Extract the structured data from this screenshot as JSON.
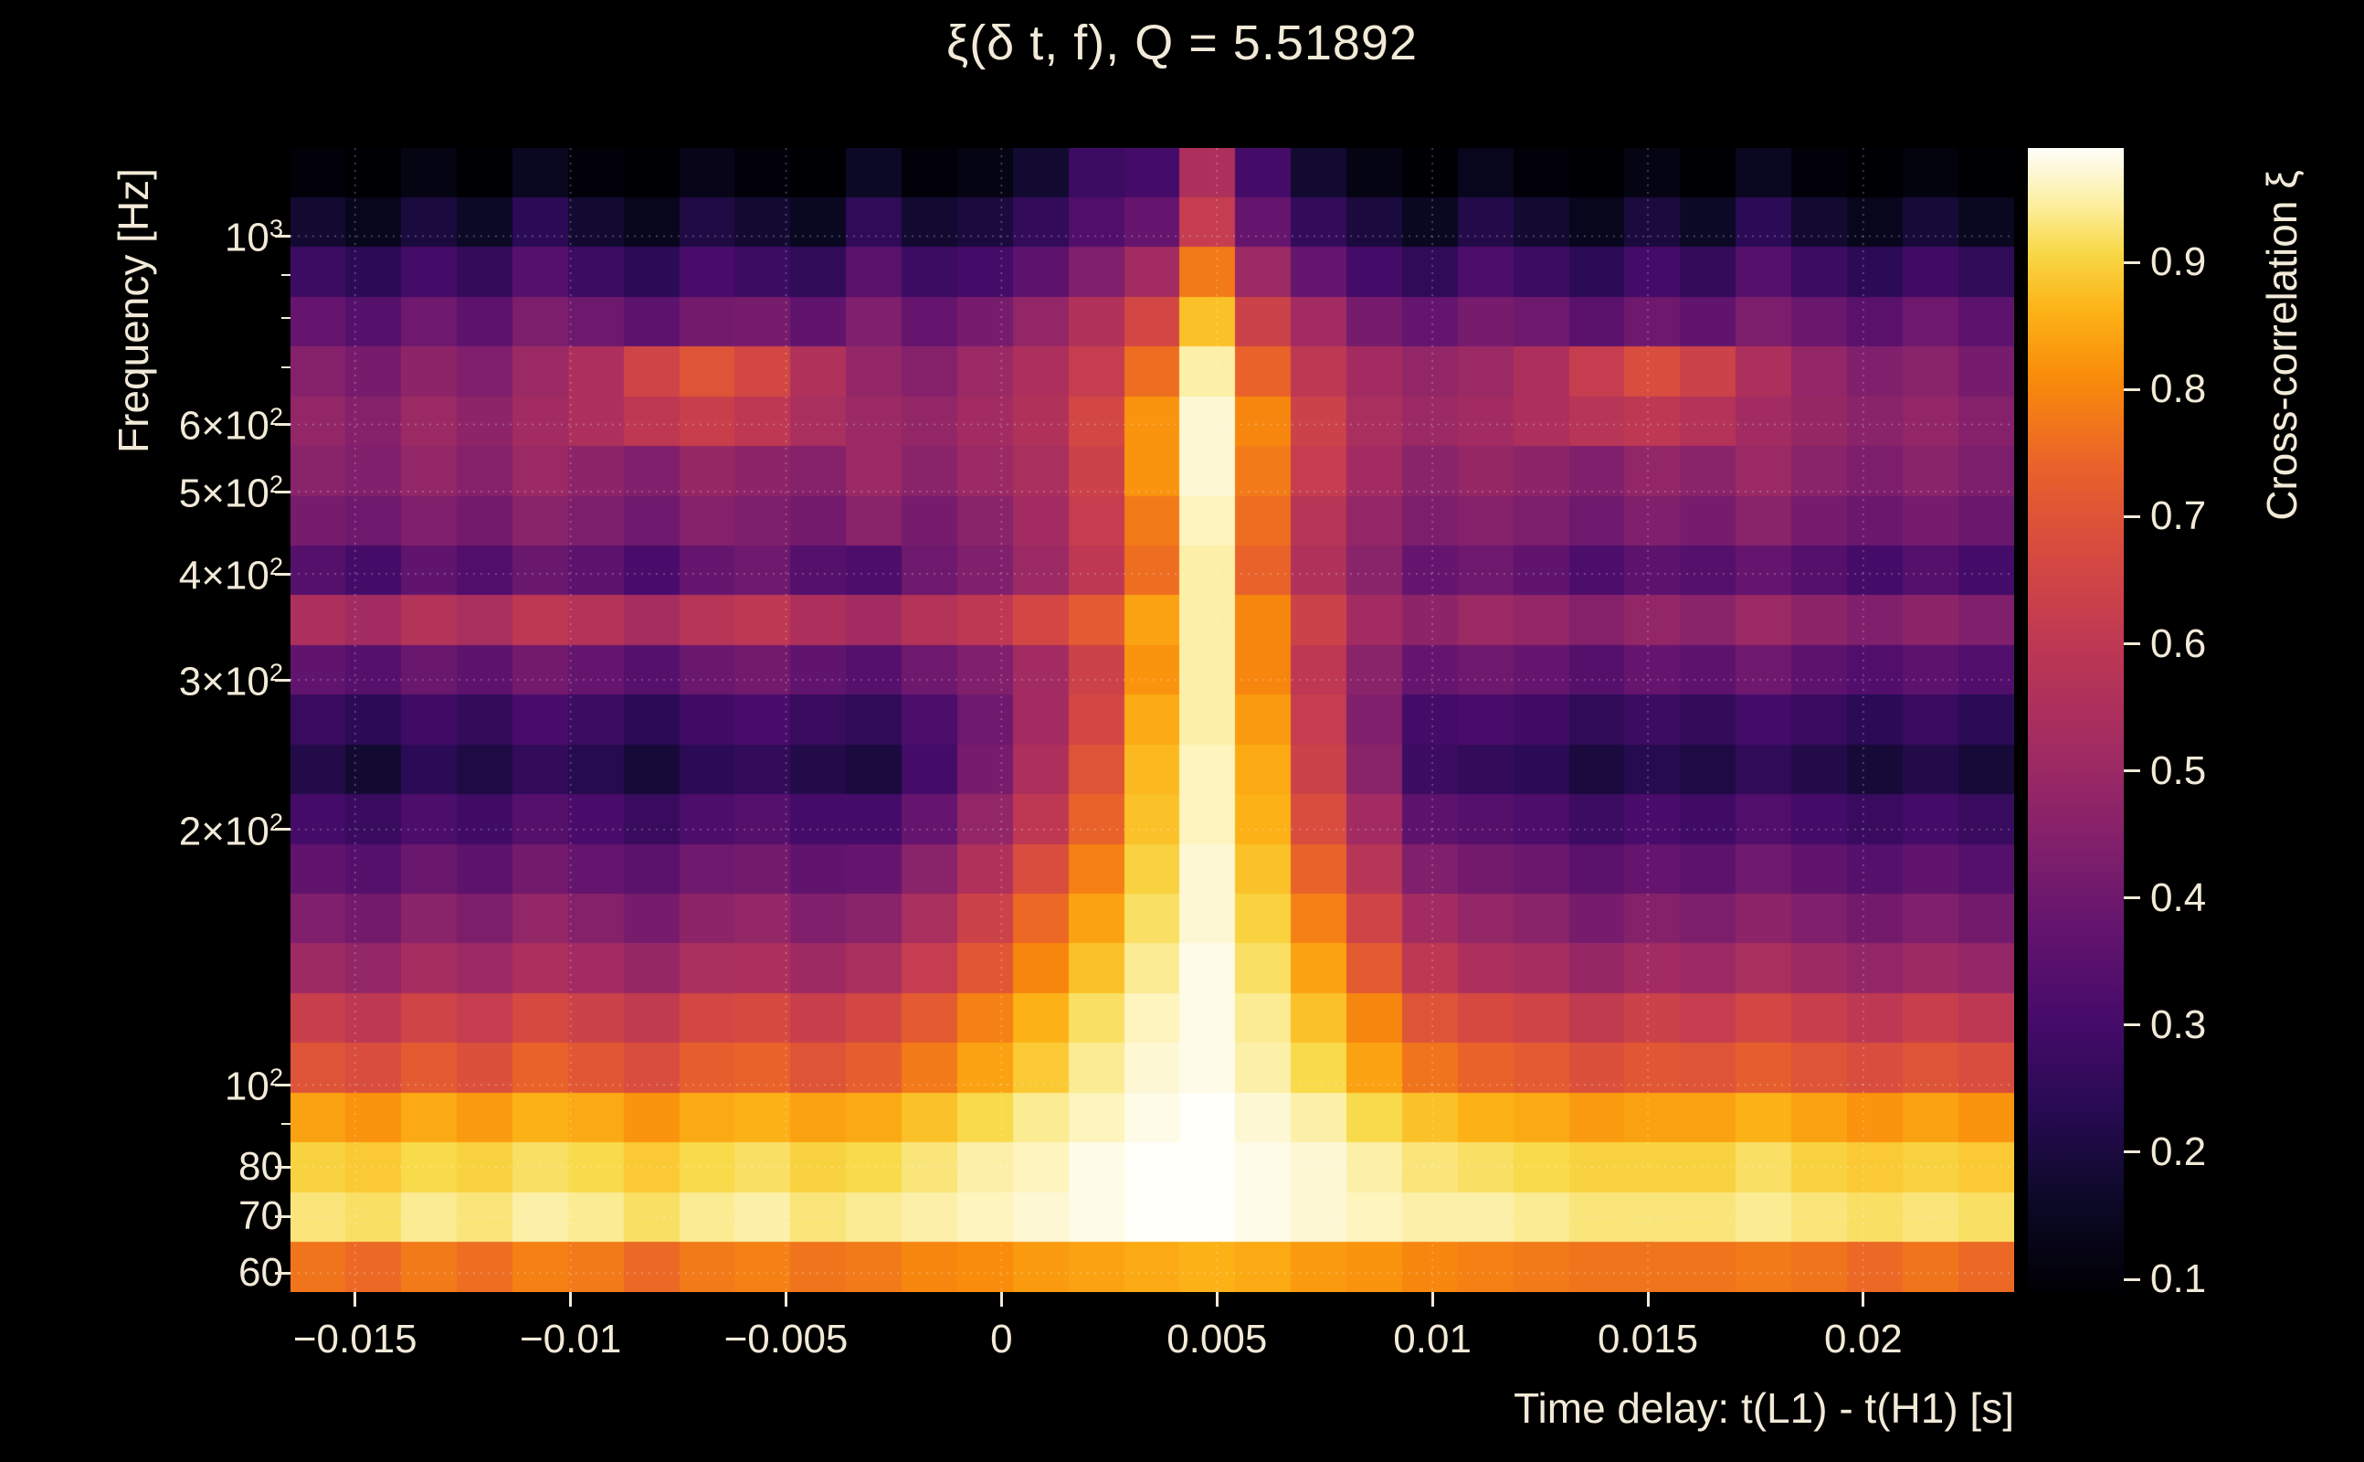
{
  "theme": {
    "background": "#000000",
    "text_color": "#f2ead8",
    "grid_color": "rgba(255,255,255,0.32)"
  },
  "chart_data": {
    "type": "heatmap",
    "title": "ξ(δ t, f), Q = 5.51892",
    "xlabel": "Time delay: t(L1) - t(H1) [s]",
    "ylabel": "Frequency [Hz]",
    "colorbar_label": "Cross-correlation ξ",
    "x_range": [
      -0.0165,
      0.0235
    ],
    "y_range": [
      57,
      1270
    ],
    "y_scale": "log",
    "x_ticks": [
      {
        "value": -0.015,
        "label": "−0.015"
      },
      {
        "value": -0.01,
        "label": "−0.01"
      },
      {
        "value": -0.005,
        "label": "−0.005"
      },
      {
        "value": 0,
        "label": "0"
      },
      {
        "value": 0.005,
        "label": "0.005"
      },
      {
        "value": 0.01,
        "label": "0.01"
      },
      {
        "value": 0.015,
        "label": "0.015"
      },
      {
        "value": 0.02,
        "label": "0.02"
      }
    ],
    "y_ticks": [
      {
        "value": 1000,
        "base": "10",
        "sup": "3"
      },
      {
        "value": 600,
        "base": "6×10",
        "sup": "2"
      },
      {
        "value": 500,
        "base": "5×10",
        "sup": "2"
      },
      {
        "value": 400,
        "base": "4×10",
        "sup": "2"
      },
      {
        "value": 300,
        "base": "3×10",
        "sup": "2"
      },
      {
        "value": 200,
        "base": "2×10",
        "sup": "2"
      },
      {
        "value": 100,
        "base": "10",
        "sup": "2"
      },
      {
        "value": 80,
        "base": "80",
        "sup": ""
      },
      {
        "value": 70,
        "base": "70",
        "sup": ""
      },
      {
        "value": 60,
        "base": "60",
        "sup": ""
      }
    ],
    "y_minor_ticks": [
      90,
      700,
      800,
      900
    ],
    "colorbar": {
      "min": 0.09,
      "max": 0.99,
      "ticks": [
        {
          "value": 0.9,
          "label": "0.9"
        },
        {
          "value": 0.8,
          "label": "0.8"
        },
        {
          "value": 0.7,
          "label": "0.7"
        },
        {
          "value": 0.6,
          "label": "0.6"
        },
        {
          "value": 0.5,
          "label": "0.5"
        },
        {
          "value": 0.4,
          "label": "0.4"
        },
        {
          "value": 0.3,
          "label": "0.3"
        },
        {
          "value": 0.2,
          "label": "0.2"
        },
        {
          "value": 0.1,
          "label": "0.1"
        }
      ]
    },
    "colormap": [
      [
        0.0,
        "#000004"
      ],
      [
        0.08,
        "#0c0927"
      ],
      [
        0.16,
        "#280b53"
      ],
      [
        0.24,
        "#470b6a"
      ],
      [
        0.32,
        "#64156e"
      ],
      [
        0.4,
        "#85216b"
      ],
      [
        0.48,
        "#a32c61"
      ],
      [
        0.56,
        "#bc3754"
      ],
      [
        0.64,
        "#d44842"
      ],
      [
        0.72,
        "#e9612b"
      ],
      [
        0.8,
        "#f98c0a"
      ],
      [
        0.86,
        "#fcb418"
      ],
      [
        0.91,
        "#f8d949"
      ],
      [
        0.95,
        "#fcee9e"
      ],
      [
        0.98,
        "#fdf8d8"
      ],
      [
        1.0,
        "#fffef8"
      ]
    ],
    "z_values": [
      [
        0.1,
        0.07,
        0.12,
        0.09,
        0.15,
        0.1,
        0.07,
        0.13,
        0.1,
        0.08,
        0.16,
        0.1,
        0.12,
        0.18,
        0.28,
        0.3,
        0.55,
        0.3,
        0.18,
        0.12,
        0.08,
        0.14,
        0.1,
        0.07,
        0.12,
        0.09,
        0.15,
        0.1,
        0.07,
        0.11,
        0.08
      ],
      [
        0.18,
        0.14,
        0.2,
        0.16,
        0.24,
        0.18,
        0.14,
        0.21,
        0.18,
        0.15,
        0.25,
        0.18,
        0.2,
        0.26,
        0.33,
        0.38,
        0.62,
        0.38,
        0.26,
        0.2,
        0.15,
        0.22,
        0.18,
        0.14,
        0.2,
        0.16,
        0.24,
        0.18,
        0.14,
        0.19,
        0.15
      ],
      [
        0.28,
        0.24,
        0.3,
        0.26,
        0.34,
        0.28,
        0.24,
        0.31,
        0.28,
        0.25,
        0.35,
        0.28,
        0.3,
        0.36,
        0.44,
        0.52,
        0.78,
        0.5,
        0.38,
        0.3,
        0.25,
        0.32,
        0.28,
        0.24,
        0.3,
        0.26,
        0.34,
        0.28,
        0.24,
        0.29,
        0.25
      ],
      [
        0.38,
        0.34,
        0.4,
        0.36,
        0.43,
        0.4,
        0.36,
        0.41,
        0.42,
        0.37,
        0.44,
        0.38,
        0.42,
        0.48,
        0.56,
        0.66,
        0.88,
        0.64,
        0.52,
        0.42,
        0.38,
        0.42,
        0.4,
        0.35,
        0.4,
        0.37,
        0.43,
        0.39,
        0.35,
        0.4,
        0.36
      ],
      [
        0.45,
        0.42,
        0.47,
        0.44,
        0.5,
        0.55,
        0.65,
        0.7,
        0.66,
        0.56,
        0.48,
        0.45,
        0.5,
        0.55,
        0.62,
        0.76,
        0.95,
        0.74,
        0.6,
        0.52,
        0.48,
        0.5,
        0.55,
        0.62,
        0.68,
        0.64,
        0.55,
        0.48,
        0.44,
        0.46,
        0.42
      ],
      [
        0.48,
        0.45,
        0.5,
        0.47,
        0.52,
        0.55,
        0.6,
        0.63,
        0.6,
        0.54,
        0.5,
        0.48,
        0.52,
        0.56,
        0.66,
        0.82,
        0.97,
        0.8,
        0.64,
        0.54,
        0.5,
        0.52,
        0.55,
        0.58,
        0.6,
        0.57,
        0.52,
        0.49,
        0.46,
        0.48,
        0.45
      ],
      [
        0.46,
        0.44,
        0.48,
        0.45,
        0.5,
        0.47,
        0.44,
        0.49,
        0.47,
        0.45,
        0.5,
        0.46,
        0.5,
        0.54,
        0.64,
        0.82,
        0.97,
        0.78,
        0.62,
        0.52,
        0.46,
        0.49,
        0.47,
        0.44,
        0.48,
        0.46,
        0.5,
        0.46,
        0.43,
        0.46,
        0.43
      ],
      [
        0.42,
        0.4,
        0.44,
        0.41,
        0.46,
        0.43,
        0.4,
        0.45,
        0.43,
        0.41,
        0.46,
        0.42,
        0.46,
        0.52,
        0.62,
        0.78,
        0.96,
        0.76,
        0.58,
        0.48,
        0.43,
        0.45,
        0.43,
        0.4,
        0.44,
        0.42,
        0.46,
        0.42,
        0.39,
        0.42,
        0.39
      ],
      [
        0.34,
        0.3,
        0.37,
        0.33,
        0.39,
        0.36,
        0.31,
        0.38,
        0.4,
        0.34,
        0.32,
        0.4,
        0.44,
        0.5,
        0.6,
        0.76,
        0.95,
        0.74,
        0.56,
        0.46,
        0.38,
        0.4,
        0.37,
        0.32,
        0.36,
        0.34,
        0.38,
        0.34,
        0.3,
        0.34,
        0.3
      ],
      [
        0.55,
        0.52,
        0.57,
        0.54,
        0.6,
        0.57,
        0.53,
        0.58,
        0.6,
        0.55,
        0.52,
        0.57,
        0.6,
        0.66,
        0.72,
        0.84,
        0.95,
        0.8,
        0.64,
        0.52,
        0.47,
        0.5,
        0.48,
        0.45,
        0.48,
        0.46,
        0.5,
        0.47,
        0.44,
        0.47,
        0.44
      ],
      [
        0.37,
        0.34,
        0.39,
        0.36,
        0.41,
        0.38,
        0.34,
        0.39,
        0.41,
        0.37,
        0.34,
        0.4,
        0.44,
        0.52,
        0.64,
        0.82,
        0.95,
        0.8,
        0.6,
        0.46,
        0.38,
        0.4,
        0.38,
        0.34,
        0.38,
        0.36,
        0.4,
        0.36,
        0.33,
        0.36,
        0.33
      ],
      [
        0.27,
        0.24,
        0.29,
        0.26,
        0.31,
        0.28,
        0.24,
        0.29,
        0.31,
        0.27,
        0.25,
        0.32,
        0.4,
        0.52,
        0.66,
        0.85,
        0.95,
        0.83,
        0.62,
        0.44,
        0.3,
        0.31,
        0.29,
        0.25,
        0.28,
        0.26,
        0.3,
        0.27,
        0.24,
        0.27,
        0.24
      ],
      [
        0.22,
        0.18,
        0.24,
        0.21,
        0.26,
        0.23,
        0.19,
        0.24,
        0.26,
        0.22,
        0.2,
        0.3,
        0.42,
        0.55,
        0.7,
        0.87,
        0.96,
        0.85,
        0.64,
        0.46,
        0.28,
        0.26,
        0.24,
        0.2,
        0.23,
        0.21,
        0.25,
        0.22,
        0.19,
        0.22,
        0.19
      ],
      [
        0.3,
        0.27,
        0.32,
        0.29,
        0.34,
        0.31,
        0.27,
        0.32,
        0.34,
        0.3,
        0.3,
        0.38,
        0.48,
        0.6,
        0.74,
        0.88,
        0.96,
        0.86,
        0.68,
        0.52,
        0.36,
        0.34,
        0.32,
        0.28,
        0.31,
        0.29,
        0.33,
        0.3,
        0.27,
        0.3,
        0.27
      ],
      [
        0.37,
        0.34,
        0.39,
        0.36,
        0.41,
        0.38,
        0.35,
        0.4,
        0.41,
        0.37,
        0.38,
        0.46,
        0.56,
        0.68,
        0.79,
        0.9,
        0.97,
        0.88,
        0.74,
        0.58,
        0.44,
        0.41,
        0.39,
        0.35,
        0.38,
        0.36,
        0.4,
        0.37,
        0.34,
        0.37,
        0.34
      ],
      [
        0.44,
        0.41,
        0.46,
        0.43,
        0.48,
        0.45,
        0.42,
        0.47,
        0.48,
        0.44,
        0.46,
        0.54,
        0.64,
        0.75,
        0.84,
        0.92,
        0.97,
        0.9,
        0.79,
        0.65,
        0.52,
        0.48,
        0.46,
        0.42,
        0.45,
        0.43,
        0.47,
        0.44,
        0.41,
        0.44,
        0.41
      ],
      [
        0.51,
        0.48,
        0.53,
        0.5,
        0.55,
        0.52,
        0.49,
        0.54,
        0.55,
        0.51,
        0.54,
        0.62,
        0.71,
        0.8,
        0.88,
        0.94,
        0.98,
        0.92,
        0.84,
        0.72,
        0.6,
        0.55,
        0.53,
        0.49,
        0.52,
        0.5,
        0.54,
        0.51,
        0.48,
        0.51,
        0.48
      ],
      [
        0.63,
        0.6,
        0.65,
        0.62,
        0.67,
        0.64,
        0.61,
        0.66,
        0.67,
        0.63,
        0.66,
        0.72,
        0.79,
        0.86,
        0.92,
        0.96,
        0.98,
        0.94,
        0.88,
        0.8,
        0.7,
        0.67,
        0.65,
        0.61,
        0.64,
        0.62,
        0.66,
        0.63,
        0.6,
        0.63,
        0.6
      ],
      [
        0.7,
        0.68,
        0.72,
        0.69,
        0.74,
        0.71,
        0.68,
        0.73,
        0.74,
        0.7,
        0.73,
        0.78,
        0.84,
        0.89,
        0.94,
        0.97,
        0.98,
        0.95,
        0.91,
        0.84,
        0.77,
        0.74,
        0.72,
        0.69,
        0.71,
        0.7,
        0.73,
        0.7,
        0.68,
        0.7,
        0.68
      ],
      [
        0.84,
        0.82,
        0.85,
        0.83,
        0.86,
        0.85,
        0.82,
        0.85,
        0.86,
        0.84,
        0.85,
        0.88,
        0.91,
        0.94,
        0.96,
        0.98,
        0.99,
        0.97,
        0.95,
        0.91,
        0.88,
        0.86,
        0.85,
        0.83,
        0.84,
        0.84,
        0.86,
        0.84,
        0.82,
        0.84,
        0.82
      ],
      [
        0.9,
        0.89,
        0.91,
        0.9,
        0.92,
        0.91,
        0.89,
        0.91,
        0.92,
        0.9,
        0.91,
        0.93,
        0.95,
        0.96,
        0.98,
        0.99,
        0.99,
        0.98,
        0.97,
        0.95,
        0.93,
        0.92,
        0.91,
        0.9,
        0.9,
        0.9,
        0.92,
        0.9,
        0.89,
        0.9,
        0.89
      ],
      [
        0.93,
        0.92,
        0.94,
        0.93,
        0.95,
        0.94,
        0.92,
        0.94,
        0.95,
        0.93,
        0.94,
        0.95,
        0.96,
        0.97,
        0.98,
        0.99,
        0.99,
        0.98,
        0.97,
        0.96,
        0.95,
        0.95,
        0.94,
        0.93,
        0.93,
        0.93,
        0.94,
        0.93,
        0.92,
        0.93,
        0.92
      ],
      [
        0.77,
        0.75,
        0.78,
        0.76,
        0.79,
        0.78,
        0.75,
        0.78,
        0.79,
        0.77,
        0.78,
        0.8,
        0.81,
        0.83,
        0.84,
        0.85,
        0.86,
        0.85,
        0.83,
        0.82,
        0.8,
        0.79,
        0.78,
        0.77,
        0.77,
        0.77,
        0.78,
        0.77,
        0.75,
        0.77,
        0.75
      ]
    ]
  }
}
